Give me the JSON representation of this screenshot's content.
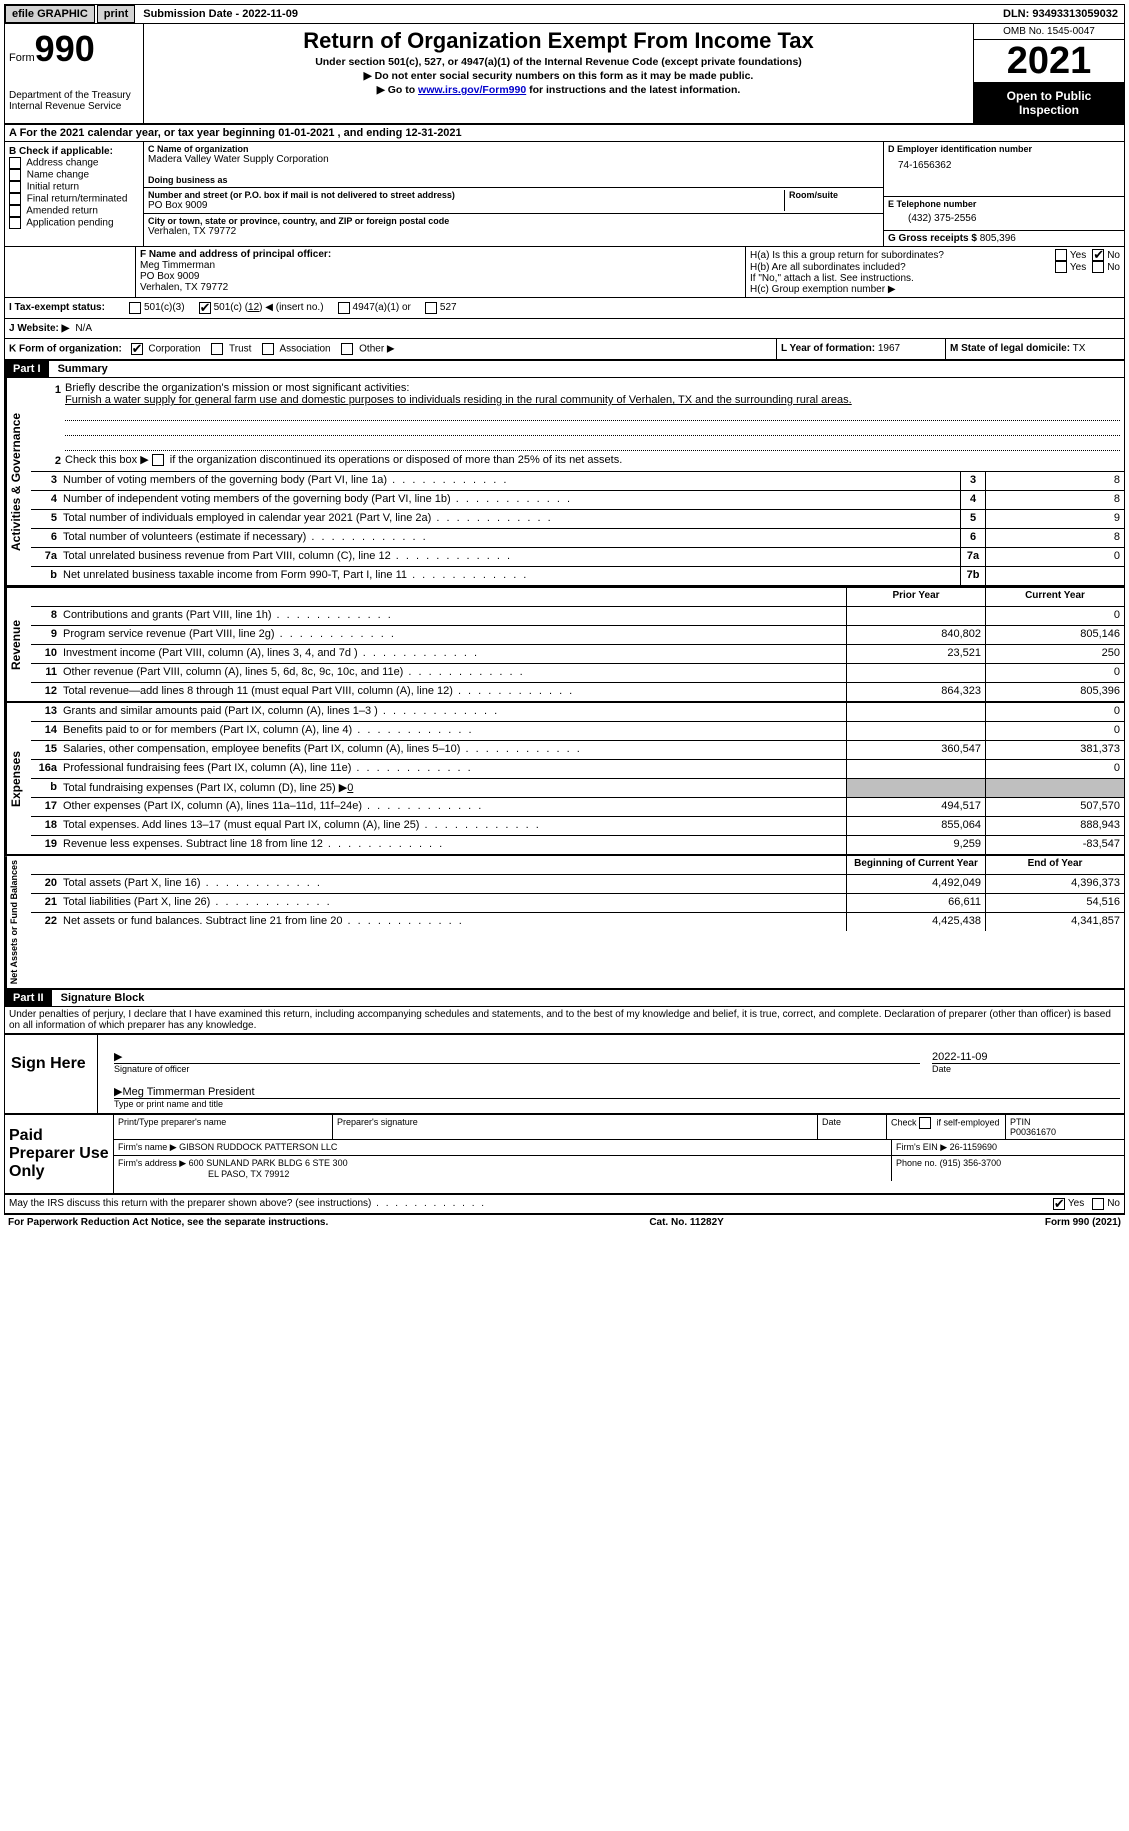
{
  "topbar": {
    "efile": "efile GRAPHIC",
    "print": "print",
    "sub_label": "Submission Date -",
    "sub_date": "2022-11-09",
    "dln_label": "DLN:",
    "dln": "93493313059032"
  },
  "header": {
    "form_word": "Form",
    "form_num": "990",
    "title": "Return of Organization Exempt From Income Tax",
    "sub1": "Under section 501(c), 527, or 4947(a)(1) of the Internal Revenue Code (except private foundations)",
    "sub2": "▶ Do not enter social security numbers on this form as it may be made public.",
    "sub3_pre": "▶ Go to ",
    "sub3_link": "www.irs.gov/Form990",
    "sub3_post": " for instructions and the latest information.",
    "dept": "Department of the Treasury",
    "irs": "Internal Revenue Service",
    "omb": "OMB No. 1545-0047",
    "year": "2021",
    "inspection": "Open to Public Inspection"
  },
  "line_a": {
    "text_pre": "A For the 2021 calendar year, or tax year beginning ",
    "begin": "01-01-2021",
    "mid": "  , and ending ",
    "end": "12-31-2021"
  },
  "block_b": {
    "title": "B Check if applicable:",
    "opts": [
      "Address change",
      "Name change",
      "Initial return",
      "Final return/terminated",
      "Amended return",
      "Application pending"
    ]
  },
  "block_c": {
    "name_label": "C Name of organization",
    "name": "Madera Valley Water Supply Corporation",
    "dba_label": "Doing business as",
    "dba": "",
    "addr_label": "Number and street (or P.O. box if mail is not delivered to street address)",
    "room_label": "Room/suite",
    "addr": "PO Box 9009",
    "city_label": "City or town, state or province, country, and ZIP or foreign postal code",
    "city": "Verhalen, TX  79772"
  },
  "block_d": {
    "ein_label": "D Employer identification number",
    "ein": "74-1656362",
    "tel_label": "E Telephone number",
    "tel": "(432) 375-2556",
    "gross_label": "G Gross receipts $",
    "gross": "805,396"
  },
  "block_f": {
    "label": "F  Name and address of principal officer:",
    "name": "Meg Timmerman",
    "addr1": "PO Box 9009",
    "addr2": "Verhalen, TX  79772"
  },
  "block_h": {
    "ha": "H(a)  Is this a group return for subordinates?",
    "hb": "H(b)  Are all subordinates included?",
    "hb_note": "If \"No,\" attach a list. See instructions.",
    "hc": "H(c)  Group exemption number ▶",
    "yes": "Yes",
    "no": "No"
  },
  "line_i": {
    "label": "I   Tax-exempt status:",
    "o1": "501(c)(3)",
    "o2_pre": "501(c) (",
    "o2_val": "12",
    "o2_post": ") ◀ (insert no.)",
    "o3": "4947(a)(1) or",
    "o4": "527"
  },
  "line_j": {
    "label": "J   Website: ▶",
    "value": "N/A"
  },
  "line_k": {
    "label": "K Form of organization:",
    "o1": "Corporation",
    "o2": "Trust",
    "o3": "Association",
    "o4": "Other ▶"
  },
  "line_l": {
    "label": "L Year of formation:",
    "value": "1967"
  },
  "line_m": {
    "label": "M State of legal domicile:",
    "value": "TX"
  },
  "part1": {
    "num": "Part I",
    "title": "Summary",
    "l1_label": "Briefly describe the organization's mission or most significant activities:",
    "l1_text": "Furnish a water supply for general farm use and domestic purposes to individuals residing in the rural community of Verhalen, TX and the surrounding rural areas.",
    "l2": "Check this box ▶        if the organization discontinued its operations or disposed of more than 25% of its net assets.",
    "rows_ag": [
      {
        "n": "3",
        "d": "Number of voting members of the governing body (Part VI, line 1a)",
        "c": "3",
        "v": "8"
      },
      {
        "n": "4",
        "d": "Number of independent voting members of the governing body (Part VI, line 1b)",
        "c": "4",
        "v": "8"
      },
      {
        "n": "5",
        "d": "Total number of individuals employed in calendar year 2021 (Part V, line 2a)",
        "c": "5",
        "v": "9"
      },
      {
        "n": "6",
        "d": "Total number of volunteers (estimate if necessary)",
        "c": "6",
        "v": "8"
      },
      {
        "n": "7a",
        "d": "Total unrelated business revenue from Part VIII, column (C), line 12",
        "c": "7a",
        "v": "0"
      },
      {
        "n": "b",
        "d": "Net unrelated business taxable income from Form 990-T, Part I, line 11",
        "c": "7b",
        "v": ""
      }
    ],
    "col_prior": "Prior Year",
    "col_current": "Current Year",
    "rows_rev": [
      {
        "n": "8",
        "d": "Contributions and grants (Part VIII, line 1h)",
        "p": "",
        "c": "0"
      },
      {
        "n": "9",
        "d": "Program service revenue (Part VIII, line 2g)",
        "p": "840,802",
        "c": "805,146"
      },
      {
        "n": "10",
        "d": "Investment income (Part VIII, column (A), lines 3, 4, and 7d )",
        "p": "23,521",
        "c": "250"
      },
      {
        "n": "11",
        "d": "Other revenue (Part VIII, column (A), lines 5, 6d, 8c, 9c, 10c, and 11e)",
        "p": "",
        "c": "0"
      },
      {
        "n": "12",
        "d": "Total revenue—add lines 8 through 11 (must equal Part VIII, column (A), line 12)",
        "p": "864,323",
        "c": "805,396"
      }
    ],
    "rows_exp": [
      {
        "n": "13",
        "d": "Grants and similar amounts paid (Part IX, column (A), lines 1–3 )",
        "p": "",
        "c": "0"
      },
      {
        "n": "14",
        "d": "Benefits paid to or for members (Part IX, column (A), line 4)",
        "p": "",
        "c": "0"
      },
      {
        "n": "15",
        "d": "Salaries, other compensation, employee benefits (Part IX, column (A), lines 5–10)",
        "p": "360,547",
        "c": "381,373"
      },
      {
        "n": "16a",
        "d": "Professional fundraising fees (Part IX, column (A), line 11e)",
        "p": "",
        "c": "0"
      },
      {
        "n": "b",
        "d": "Total fundraising expenses (Part IX, column (D), line 25) ▶",
        "p": "grey",
        "c": "grey",
        "bval": "0"
      },
      {
        "n": "17",
        "d": "Other expenses (Part IX, column (A), lines 11a–11d, 11f–24e)",
        "p": "494,517",
        "c": "507,570"
      },
      {
        "n": "18",
        "d": "Total expenses. Add lines 13–17 (must equal Part IX, column (A), line 25)",
        "p": "855,064",
        "c": "888,943"
      },
      {
        "n": "19",
        "d": "Revenue less expenses. Subtract line 18 from line 12",
        "p": "9,259",
        "c": "-83,547"
      }
    ],
    "col_boy": "Beginning of Current Year",
    "col_eoy": "End of Year",
    "rows_net": [
      {
        "n": "20",
        "d": "Total assets (Part X, line 16)",
        "p": "4,492,049",
        "c": "4,396,373"
      },
      {
        "n": "21",
        "d": "Total liabilities (Part X, line 26)",
        "p": "66,611",
        "c": "54,516"
      },
      {
        "n": "22",
        "d": "Net assets or fund balances. Subtract line 21 from line 20",
        "p": "4,425,438",
        "c": "4,341,857"
      }
    ],
    "vlabel_ag": "Activities & Governance",
    "vlabel_rev": "Revenue",
    "vlabel_exp": "Expenses",
    "vlabel_net": "Net Assets or Fund Balances"
  },
  "part2": {
    "num": "Part II",
    "title": "Signature Block",
    "penalty": "Under penalties of perjury, I declare that I have examined this return, including accompanying schedules and statements, and to the best of my knowledge and belief, it is true, correct, and complete. Declaration of preparer (other than officer) is based on all information of which preparer has any knowledge.",
    "sign_here": "Sign Here",
    "sig_officer": "Signature of officer",
    "sig_date": "2022-11-09",
    "date_label": "Date",
    "sig_name": "Meg Timmerman President",
    "sig_name_label": "Type or print name and title"
  },
  "paid": {
    "label": "Paid Preparer Use Only",
    "r1": {
      "c1": "Print/Type preparer's name",
      "c2": "Preparer's signature",
      "c3": "Date",
      "c4_label": "Check        if self-employed",
      "c5_label": "PTIN",
      "c5": "P00361670"
    },
    "r2": {
      "c1": "Firm's name    ▶",
      "c1v": "GIBSON RUDDOCK PATTERSON LLC",
      "c2": "Firm's EIN ▶",
      "c2v": "26-1159690"
    },
    "r3": {
      "c1": "Firm's address ▶",
      "c1v": "600 SUNLAND PARK BLDG 6 STE 300",
      "c1v2": "EL PASO, TX  79912",
      "c2": "Phone no.",
      "c2v": "(915) 356-3700"
    }
  },
  "discuss": {
    "text": "May the IRS discuss this return with the preparer shown above? (see instructions)",
    "yes": "Yes",
    "no": "No"
  },
  "footer": {
    "left": "For Paperwork Reduction Act Notice, see the separate instructions.",
    "mid": "Cat. No. 11282Y",
    "right": "Form 990 (2021)"
  }
}
